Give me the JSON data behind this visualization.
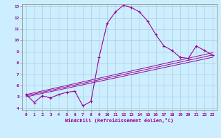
{
  "bg_color": "#cceeff",
  "line_color": "#990099",
  "grid_color": "#aaccdd",
  "xlim": [
    -0.5,
    23.5
  ],
  "ylim": [
    3.8,
    13.2
  ],
  "xticks": [
    0,
    1,
    2,
    3,
    4,
    5,
    6,
    7,
    8,
    9,
    10,
    11,
    12,
    13,
    14,
    15,
    16,
    17,
    18,
    19,
    20,
    21,
    22,
    23
  ],
  "yticks": [
    4,
    5,
    6,
    7,
    8,
    9,
    10,
    11,
    12,
    13
  ],
  "xlabel": "Windchill (Refroidissement éolien,°C)",
  "curve1_x": [
    0,
    1,
    2,
    3,
    4,
    5,
    6,
    7,
    8,
    9,
    10,
    11,
    12,
    13,
    14,
    15,
    16,
    17,
    18,
    19,
    20,
    21,
    22,
    23
  ],
  "curve1_y": [
    5.2,
    4.5,
    5.1,
    4.9,
    5.2,
    5.4,
    5.5,
    4.2,
    4.6,
    8.5,
    11.5,
    12.5,
    13.1,
    12.9,
    12.5,
    11.7,
    10.5,
    9.5,
    9.1,
    8.5,
    8.4,
    9.5,
    9.1,
    8.7
  ],
  "line2_x": [
    0,
    23
  ],
  "line2_y": [
    5.0,
    8.5
  ],
  "line3_x": [
    0,
    23
  ],
  "line3_y": [
    5.1,
    8.7
  ],
  "line4_x": [
    0,
    23
  ],
  "line4_y": [
    5.2,
    8.9
  ]
}
